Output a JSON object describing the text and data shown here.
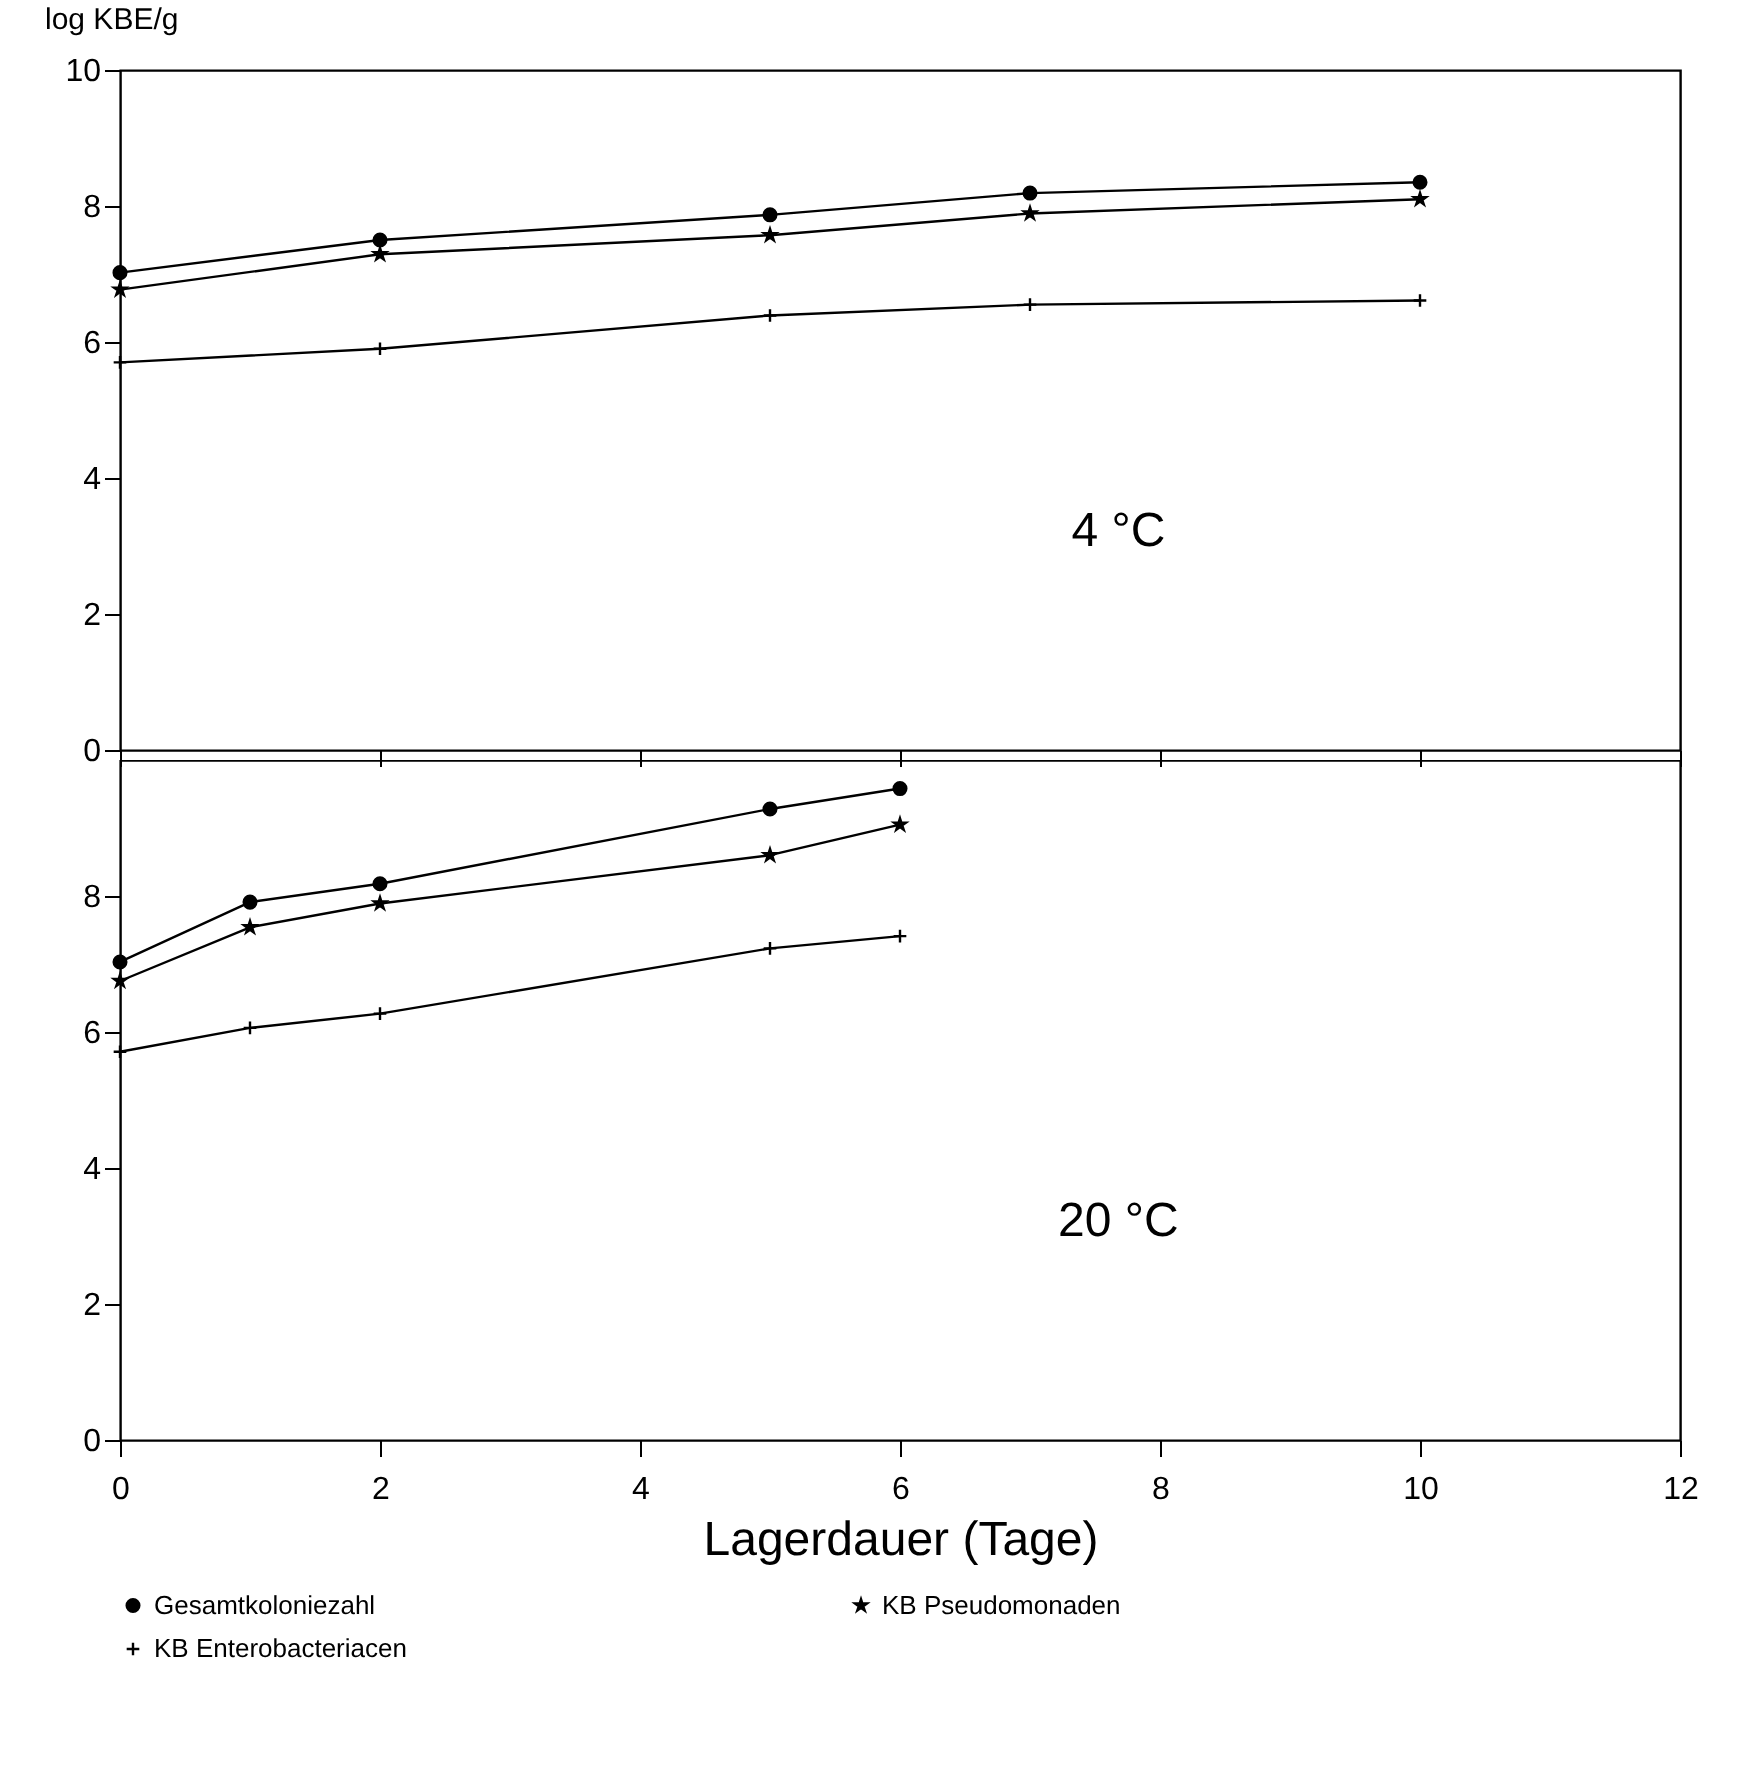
{
  "chart_data": [
    {
      "type": "line",
      "ylabel": "log KBE/g",
      "annotations": [
        "4 °C"
      ],
      "xlim": [
        0,
        12
      ],
      "xticks": [
        0,
        2,
        4,
        6,
        8,
        10,
        12
      ],
      "ylim": [
        0,
        10
      ],
      "yticks": [
        0,
        2,
        4,
        6,
        8,
        10
      ],
      "tick_labels": "y",
      "grid": false,
      "series": [
        {
          "color": "#000000",
          "marker": "circle",
          "x": [
            0,
            2,
            5,
            7,
            10
          ],
          "values": [
            7.02,
            7.5,
            7.87,
            8.19,
            8.35
          ]
        },
        {
          "color": "#000000",
          "marker": "star",
          "x": [
            0,
            2,
            5,
            7,
            10
          ],
          "values": [
            6.77,
            7.29,
            7.57,
            7.89,
            8.1
          ]
        },
        {
          "color": "#000000",
          "marker": "cross",
          "x": [
            0,
            2,
            5,
            7,
            10
          ],
          "values": [
            5.7,
            5.9,
            6.39,
            6.55,
            6.61
          ]
        }
      ]
    },
    {
      "type": "line",
      "xlabel": "Lagerdauer (Tage)",
      "annotations": [
        "20 °C"
      ],
      "xlim": [
        0,
        12
      ],
      "xticks": [
        0,
        2,
        4,
        6,
        8,
        10,
        12
      ],
      "ylim": [
        0,
        10
      ],
      "yticks": [
        0,
        2,
        4,
        6,
        8
      ],
      "legend": "bottom",
      "grid": false,
      "series": [
        {
          "name": "Gesamtkoloniezahl",
          "color": "#000000",
          "marker": "circle",
          "x": [
            0,
            1,
            2,
            5,
            6
          ],
          "values": [
            7.03,
            7.91,
            8.18,
            9.28,
            9.58
          ]
        },
        {
          "name": "KB Pseudomonaden",
          "color": "#000000",
          "marker": "star",
          "x": [
            0,
            1,
            2,
            5,
            6
          ],
          "values": [
            6.75,
            7.54,
            7.89,
            8.6,
            9.05
          ]
        },
        {
          "name": "KB Enterobacteriacen",
          "color": "#000000",
          "marker": "cross",
          "x": [
            0,
            1,
            2,
            5,
            6
          ],
          "values": [
            5.71,
            6.06,
            6.27,
            7.23,
            7.41
          ]
        }
      ]
    }
  ]
}
